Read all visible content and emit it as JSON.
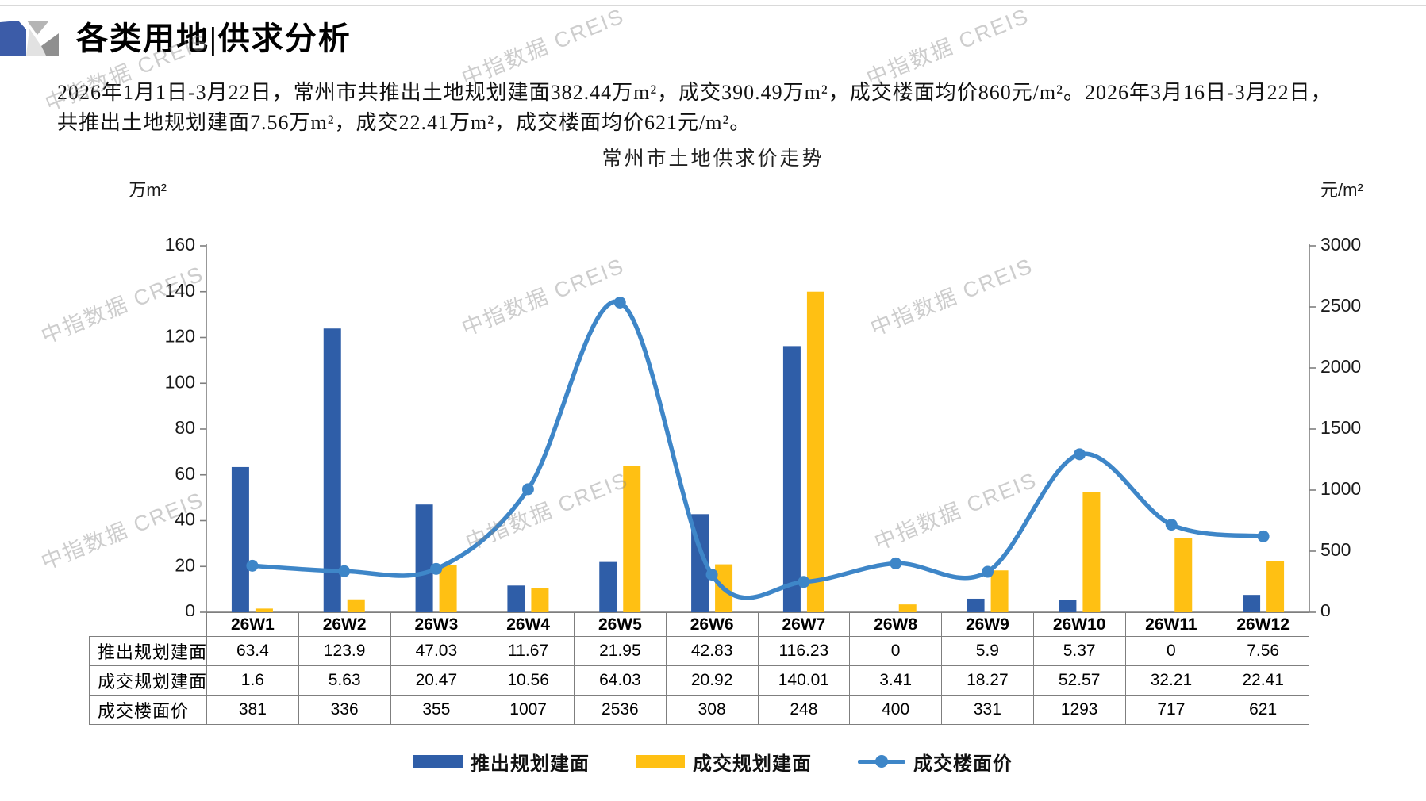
{
  "header": {
    "title": "各类用地|供求分析",
    "description_lines": [
      "2026年1月1日-3月22日，常州市共推出土地规划建面382.44万m²，成交390.49万m²，成交楼面均价860元/m²。2026年3月16日-3月22日，",
      "共推出土地规划建面7.56万m²，成交22.41万m²，成交楼面均价621元/m²。"
    ]
  },
  "watermark": {
    "text": "中指数据 CREIS"
  },
  "chart_data": {
    "type": "bar+line",
    "title": "常州市土地供求价走势",
    "categories": [
      "26W1",
      "26W2",
      "26W3",
      "26W4",
      "26W5",
      "26W6",
      "26W7",
      "26W8",
      "26W9",
      "26W10",
      "26W11",
      "26W12"
    ],
    "series": [
      {
        "name": "推出规划建面",
        "type": "bar",
        "axis": "left",
        "color": "#2F5EA8",
        "values": [
          63.4,
          123.9,
          47.03,
          11.67,
          21.95,
          42.83,
          116.23,
          0,
          5.9,
          5.37,
          0,
          7.56
        ]
      },
      {
        "name": "成交规划建面",
        "type": "bar",
        "axis": "left",
        "color": "#FFC013",
        "values": [
          1.6,
          5.63,
          20.47,
          10.56,
          64.03,
          20.92,
          140.01,
          3.41,
          18.27,
          52.57,
          32.21,
          22.41
        ]
      },
      {
        "name": "成交楼面价",
        "type": "line",
        "axis": "right",
        "color": "#3E86C8",
        "values": [
          381,
          336,
          355,
          1007,
          2536,
          308,
          248,
          400,
          331,
          1293,
          717,
          621
        ]
      }
    ],
    "left_axis": {
      "unit": "万m²",
      "min": 0,
      "max": 160,
      "step": 20
    },
    "right_axis": {
      "unit": "元/m²",
      "min": 0,
      "max": 3000,
      "step": 500
    },
    "grid": false,
    "legend_position": "bottom",
    "axis_color": "#7f7f7f"
  },
  "table": {
    "col_headers": [
      "26W1",
      "26W2",
      "26W3",
      "26W4",
      "26W5",
      "26W6",
      "26W7",
      "26W8",
      "26W9",
      "26W10",
      "26W11",
      "26W12"
    ],
    "rows": [
      {
        "label": "推出规划建面",
        "values": [
          "63.4",
          "123.9",
          "47.03",
          "11.67",
          "21.95",
          "42.83",
          "116.23",
          "0",
          "5.9",
          "5.37",
          "0",
          "7.56"
        ]
      },
      {
        "label": "成交规划建面",
        "values": [
          "1.6",
          "5.63",
          "20.47",
          "10.56",
          "64.03",
          "20.92",
          "140.01",
          "3.41",
          "18.27",
          "52.57",
          "32.21",
          "22.41"
        ]
      },
      {
        "label": "成交楼面价",
        "values": [
          "381",
          "336",
          "355",
          "1007",
          "2536",
          "308",
          "248",
          "400",
          "331",
          "1293",
          "717",
          "621"
        ]
      }
    ]
  },
  "logo_colors": {
    "blue": "#3C5CA8",
    "gray_light": "#E2E2E2",
    "gray_mid": "#B5B5B5",
    "gray_dark": "#8F8F8F"
  }
}
